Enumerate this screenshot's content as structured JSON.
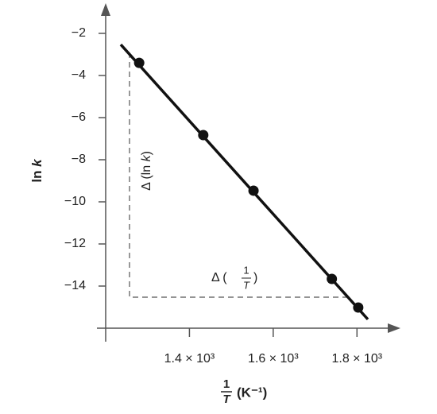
{
  "chart_data": {
    "type": "scatter",
    "ylabel": {
      "text": "ln",
      "var": "k"
    },
    "xlabel": {
      "numerator": "1",
      "denominator": "T",
      "unit": "(K⁻¹)"
    },
    "annotations": {
      "delta_y": {
        "prefix": "Δ (ln ",
        "var": "k",
        "suffix": ")"
      },
      "delta_x": {
        "prefix": "Δ (",
        "numerator": "1",
        "denominator": "T",
        "suffix": ")"
      }
    },
    "x": [
      1280,
      1433,
      1553,
      1740,
      1803
    ],
    "values": [
      -3.4,
      -6.83,
      -9.47,
      -13.66,
      -15.02
    ],
    "color": "#111111",
    "fit_line": {
      "x": [
        1236,
        1826
      ],
      "y": [
        -2.53,
        -15.58
      ]
    },
    "xlim": [
      1200,
      1900
    ],
    "ylim": [
      -16,
      -1
    ],
    "xticks": [
      {
        "value": 1400,
        "label": "1.4 × 10³"
      },
      {
        "value": 1600,
        "label": "1.6 × 10³"
      },
      {
        "value": 1800,
        "label": "1.8 × 10³"
      }
    ],
    "yticks": [
      {
        "value": -2,
        "label": "−2"
      },
      {
        "value": -4,
        "label": "−4"
      },
      {
        "value": -6,
        "label": "−6"
      },
      {
        "value": -8,
        "label": "−8"
      },
      {
        "value": -10,
        "label": "−10"
      },
      {
        "value": -12,
        "label": "−12"
      },
      {
        "value": -14,
        "label": "−14"
      }
    ]
  }
}
